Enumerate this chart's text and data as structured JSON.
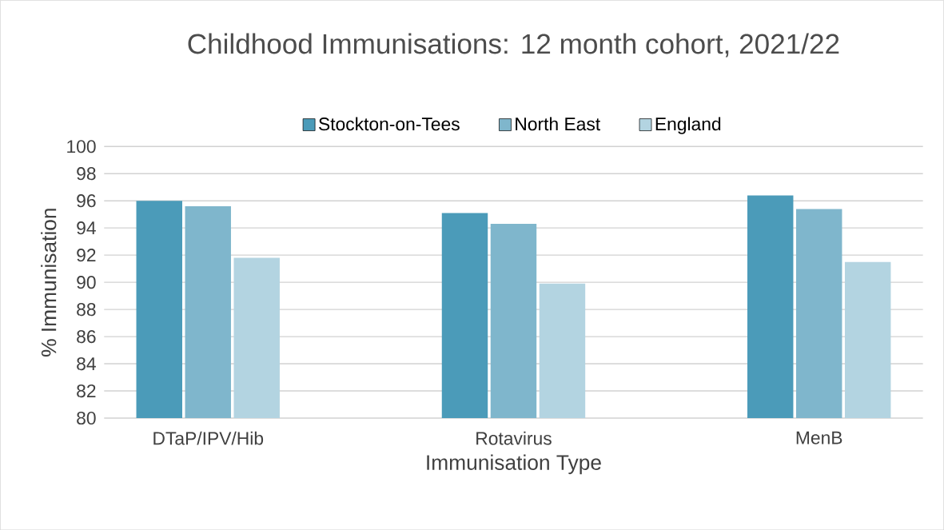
{
  "chart_data": {
    "type": "bar",
    "title": "Childhood Immunisations: 12 month cohort, 2021/22",
    "xlabel": "Immunisation Type",
    "ylabel": "% Immunisation",
    "categories": [
      "DTaP/IPV/Hib",
      "Rotavirus",
      "MenB"
    ],
    "series": [
      {
        "name": "Stockton-on-Tees",
        "color": "#4b9bb9",
        "values": [
          96.0,
          95.1,
          96.4
        ]
      },
      {
        "name": "North East",
        "color": "#7fb6cc",
        "values": [
          95.6,
          94.3,
          95.4
        ]
      },
      {
        "name": "England",
        "color": "#b3d4e1",
        "values": [
          91.8,
          89.9,
          91.5
        ]
      }
    ],
    "ylim": [
      80,
      100
    ],
    "yticks": [
      80,
      82,
      84,
      86,
      88,
      90,
      92,
      94,
      96,
      98,
      100
    ],
    "grid": "y",
    "legend": "top"
  }
}
